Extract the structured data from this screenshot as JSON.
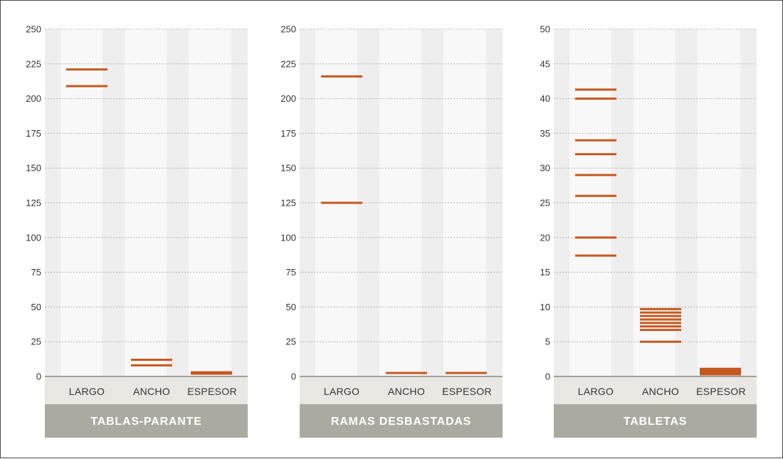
{
  "colors": {
    "mark": "#c5581f",
    "column_light": "#f8f8f8",
    "column_dark": "#eeeeee",
    "category_band": "#e8e7e1",
    "title_band": "#aaaaa0",
    "grid": "#b5b5b5",
    "axis": "#555555"
  },
  "chart_data": [
    {
      "type": "bar",
      "title": "TABLAS-PARANTE",
      "categories": [
        "LARGO",
        "ANCHO",
        "ESPESOR"
      ],
      "ylim": [
        0,
        250
      ],
      "yticks": [
        "0",
        "25",
        "50",
        "75",
        "100",
        "125",
        "150",
        "175",
        "200",
        "225",
        "250"
      ],
      "grid": true,
      "marks": [
        [
          221,
          209
        ],
        [
          12,
          8
        ],
        [
          3,
          2
        ]
      ]
    },
    {
      "type": "bar",
      "title": "RAMAS DESBASTADAS",
      "categories": [
        "LARGO",
        "ANCHO",
        "ESPESOR"
      ],
      "ylim": [
        0,
        250
      ],
      "yticks": [
        "0",
        "25",
        "50",
        "75",
        "100",
        "125",
        "150",
        "175",
        "200",
        "225",
        "250"
      ],
      "grid": true,
      "marks": [
        [
          216,
          125
        ],
        [
          2.5
        ],
        [
          2.5
        ]
      ]
    },
    {
      "type": "bar",
      "title": "TABLETAS",
      "categories": [
        "LARGO",
        "ANCHO",
        "ESPESOR"
      ],
      "ylim": [
        0,
        50
      ],
      "yticks": [
        "0",
        "5",
        "10",
        "15",
        "20",
        "25",
        "30",
        "35",
        "40",
        "45",
        "50"
      ],
      "grid": true,
      "marks": [
        [
          41.3,
          40,
          34,
          32,
          29,
          26,
          20,
          17.4
        ],
        [
          9.7,
          9.2,
          8.7,
          8.2,
          7.7,
          7.2,
          6.7,
          5
        ],
        [
          1.1,
          0.9,
          0.7,
          0.5,
          0.3
        ]
      ]
    }
  ]
}
